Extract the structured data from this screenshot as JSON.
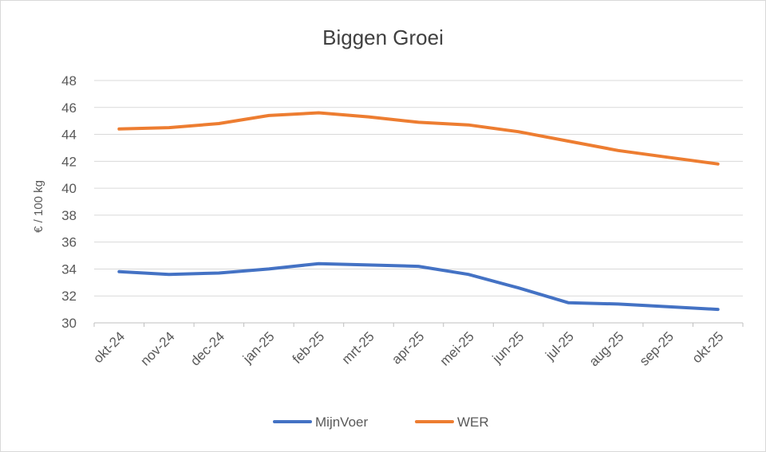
{
  "chart_data": {
    "type": "line",
    "title": "Biggen Groei",
    "xlabel": "",
    "ylabel": "€ / 100 kg",
    "ylim": [
      30,
      48
    ],
    "y_ticks": [
      "30",
      "32",
      "34",
      "36",
      "38",
      "40",
      "42",
      "44",
      "46",
      "48"
    ],
    "categories": [
      "okt-24",
      "nov-24",
      "dec-24",
      "jan-25",
      "feb-25",
      "mrt-25",
      "apr-25",
      "mei-25",
      "jun-25",
      "jul-25",
      "aug-25",
      "sep-25",
      "okt-25"
    ],
    "grid": true,
    "legend_position": "bottom",
    "series": [
      {
        "name": "MijnVoer",
        "color": "#4472C4",
        "values": [
          33.8,
          33.6,
          33.7,
          34.0,
          34.4,
          34.3,
          34.2,
          33.6,
          32.6,
          31.5,
          31.4,
          31.2,
          31.0
        ]
      },
      {
        "name": "WER",
        "color": "#ED7D31",
        "values": [
          44.4,
          44.5,
          44.8,
          45.4,
          45.6,
          45.3,
          44.9,
          44.7,
          44.2,
          43.5,
          42.8,
          42.3,
          41.8
        ]
      }
    ]
  }
}
